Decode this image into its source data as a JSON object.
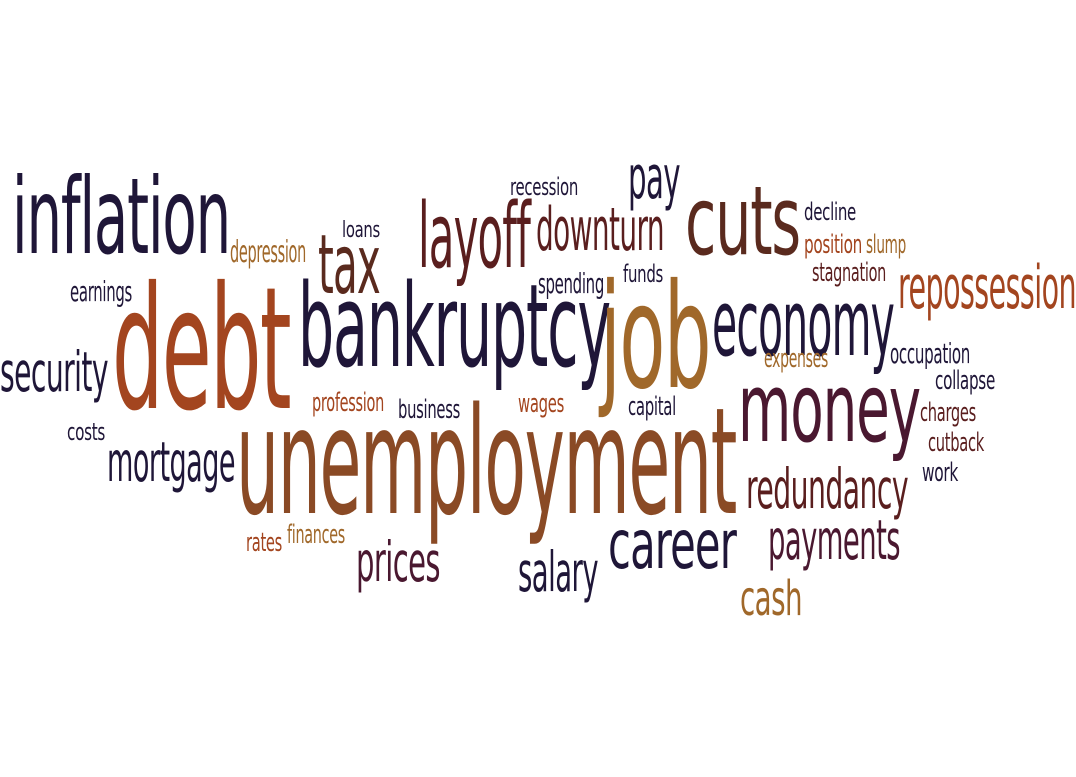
{
  "colors": {
    "navy": "#1f1638",
    "plum": "#4a1830",
    "maroon": "#5a1e1e",
    "rust": "#a3451f",
    "brown": "#8a4a25",
    "amber": "#a0682a",
    "tan": "#b07030"
  },
  "words": [
    {
      "id": "inflation",
      "text": "inflation",
      "color": "#1f1638"
    },
    {
      "id": "debt",
      "text": "debt",
      "color": "#a3451f"
    },
    {
      "id": "unemployment",
      "text": "unemployment",
      "color": "#8a4a25"
    },
    {
      "id": "bankruptcy",
      "text": "bankruptcy",
      "color": "#1f1638"
    },
    {
      "id": "job",
      "text": "job",
      "color": "#a0682a"
    },
    {
      "id": "cuts",
      "text": "cuts",
      "color": "#5a2a1e"
    },
    {
      "id": "economy",
      "text": "economy",
      "color": "#1f1638"
    },
    {
      "id": "money",
      "text": "money",
      "color": "#4a1830"
    },
    {
      "id": "repossession",
      "text": "repossession",
      "color": "#a3451f"
    },
    {
      "id": "layoff",
      "text": "layoff",
      "color": "#5a1e1e"
    },
    {
      "id": "downturn",
      "text": "downturn",
      "color": "#5a1e1e"
    },
    {
      "id": "tax",
      "text": "tax",
      "color": "#5a2a1e"
    },
    {
      "id": "pay",
      "text": "pay",
      "color": "#1f1638"
    },
    {
      "id": "recession",
      "text": "recession",
      "color": "#1f1638"
    },
    {
      "id": "loans",
      "text": "loans",
      "color": "#1f1638"
    },
    {
      "id": "depression",
      "text": "depression",
      "color": "#a0682a"
    },
    {
      "id": "earnings",
      "text": "earnings",
      "color": "#1f1638"
    },
    {
      "id": "security",
      "text": "security",
      "color": "#1f1638"
    },
    {
      "id": "costs",
      "text": "costs",
      "color": "#1f1638"
    },
    {
      "id": "mortgage",
      "text": "mortgage",
      "color": "#1f1638"
    },
    {
      "id": "profession",
      "text": "profession",
      "color": "#a3451f"
    },
    {
      "id": "business",
      "text": "business",
      "color": "#1f1638"
    },
    {
      "id": "wages",
      "text": "wages",
      "color": "#a3451f"
    },
    {
      "id": "capital",
      "text": "capital",
      "color": "#1f1638"
    },
    {
      "id": "spending",
      "text": "spending",
      "color": "#1f1638"
    },
    {
      "id": "funds",
      "text": "funds",
      "color": "#1f1638"
    },
    {
      "id": "decline",
      "text": "decline",
      "color": "#1f1638"
    },
    {
      "id": "position",
      "text": "position",
      "color": "#a3451f"
    },
    {
      "id": "slump",
      "text": "slump",
      "color": "#a0682a"
    },
    {
      "id": "stagnation",
      "text": "stagnation",
      "color": "#5a1e1e"
    },
    {
      "id": "expenses",
      "text": "expenses",
      "color": "#a0682a"
    },
    {
      "id": "occupation",
      "text": "occupation",
      "color": "#1f1638"
    },
    {
      "id": "collapse",
      "text": "collapse",
      "color": "#1f1638"
    },
    {
      "id": "charges",
      "text": "charges",
      "color": "#5a1e1e"
    },
    {
      "id": "cutback",
      "text": "cutback",
      "color": "#5a1e1e"
    },
    {
      "id": "work",
      "text": "work",
      "color": "#1f1638"
    },
    {
      "id": "redundancy",
      "text": "redundancy",
      "color": "#5a1e1e"
    },
    {
      "id": "payments",
      "text": "payments",
      "color": "#4a1830"
    },
    {
      "id": "cash",
      "text": "cash",
      "color": "#a0682a"
    },
    {
      "id": "career",
      "text": "career",
      "color": "#1f1638"
    },
    {
      "id": "salary",
      "text": "salary",
      "color": "#1f1638"
    },
    {
      "id": "prices",
      "text": "prices",
      "color": "#4a1830"
    },
    {
      "id": "finances",
      "text": "finances",
      "color": "#a0682a"
    },
    {
      "id": "rates",
      "text": "rates",
      "color": "#a3451f"
    }
  ]
}
